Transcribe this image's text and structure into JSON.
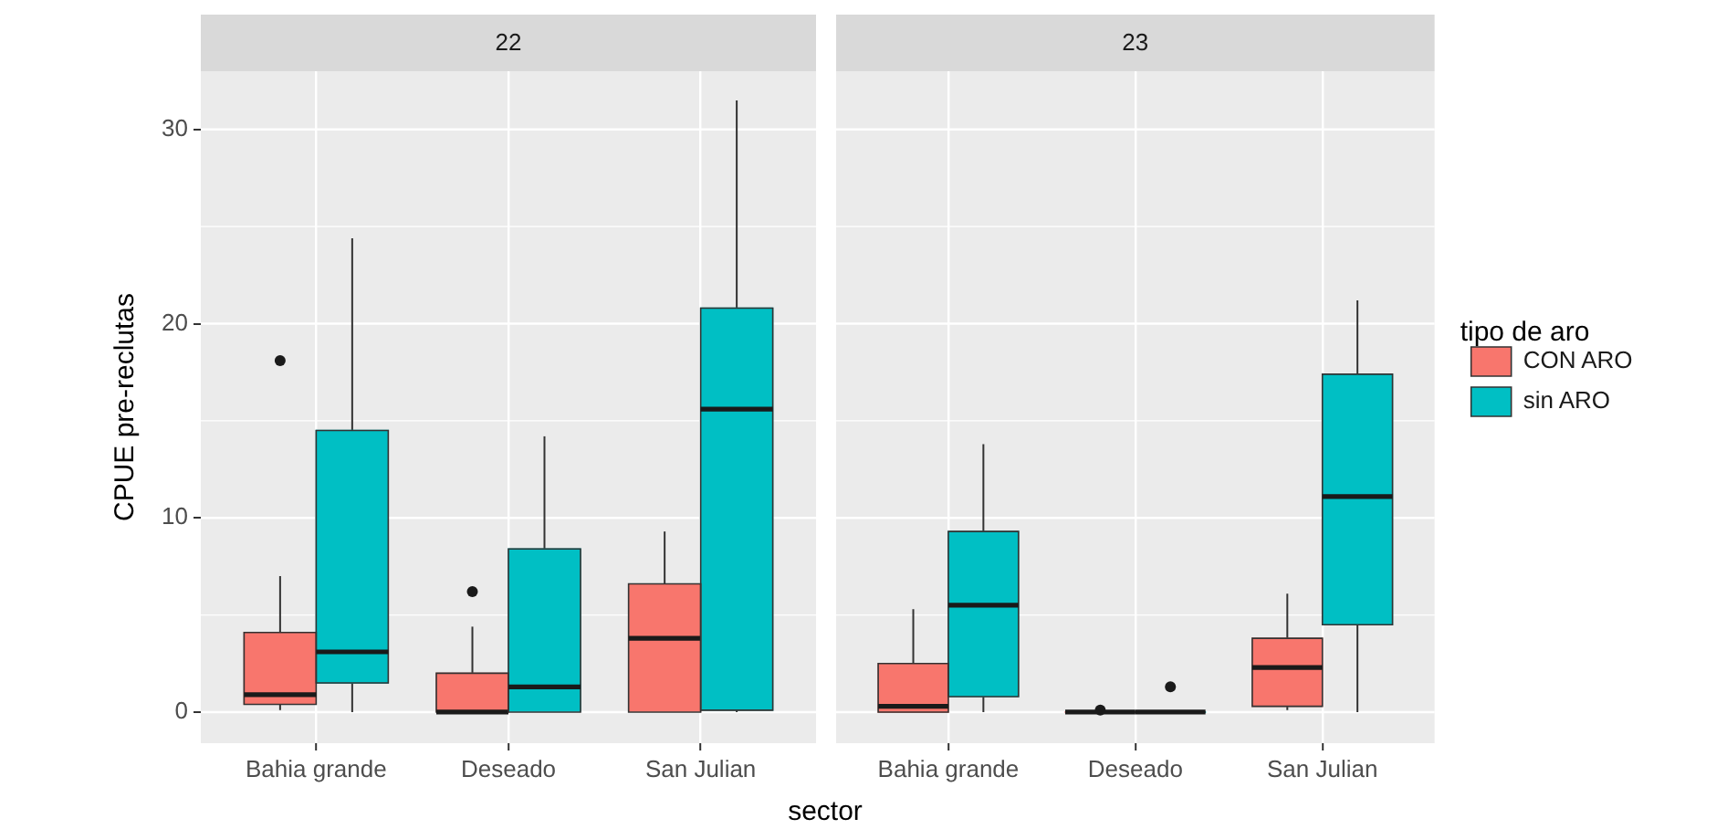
{
  "chart_data": [
    {
      "type": "box",
      "title": "22",
      "xlabel": "sector",
      "ylabel": "CPUE pre-reclutas",
      "categories": [
        "Bahia grande",
        "Deseado",
        "San Julian"
      ],
      "series": [
        {
          "color": "#f8766d",
          "boxes": [
            {
              "low": 0.1,
              "q1": 0.4,
              "median": 0.9,
              "q3": 4.1,
              "high": 7,
              "outliers": [
                18.1
              ]
            },
            {
              "low": 0,
              "q1": 0,
              "median": 0,
              "q3": 2,
              "high": 4.4,
              "outliers": [
                6.2
              ]
            },
            {
              "low": 0,
              "q1": 0,
              "median": 3.8,
              "q3": 6.6,
              "high": 9.3
            }
          ]
        },
        {
          "color": "#00bfc4",
          "boxes": [
            {
              "low": 0,
              "q1": 1.5,
              "median": 3.1,
              "q3": 14.5,
              "high": 24.4
            },
            {
              "low": 0,
              "q1": 0,
              "median": 1.3,
              "q3": 8.4,
              "high": 14.2
            },
            {
              "low": 0,
              "q1": 0.1,
              "median": 15.6,
              "q3": 20.8,
              "high": 31.5
            }
          ]
        }
      ],
      "ylim": [
        -1.6,
        33
      ],
      "yticks": [
        0,
        10,
        20,
        30
      ],
      "grid": true
    },
    {
      "type": "box",
      "title": "23",
      "categories": [
        "Bahia grande",
        "Deseado",
        "San Julian"
      ],
      "series": [
        {
          "name": "CON ARO",
          "color": "#f8766d",
          "boxes": [
            {
              "low": 0,
              "q1": 0,
              "median": 0.3,
              "q3": 2.5,
              "high": 5.3
            },
            {
              "low": 0,
              "q1": 0,
              "median": 0,
              "q3": 0,
              "high": 0,
              "outliers": [
                0.1
              ]
            },
            {
              "low": 0.1,
              "q1": 0.3,
              "median": 2.3,
              "q3": 3.8,
              "high": 6.1
            }
          ]
        },
        {
          "name": "sin ARO",
          "color": "#00bfc4",
          "boxes": [
            {
              "low": 0,
              "q1": 0.8,
              "median": 5.5,
              "q3": 9.3,
              "high": 13.8
            },
            {
              "low": 0,
              "q1": 0,
              "median": 0,
              "q3": 0,
              "high": 0,
              "outliers": [
                1.3
              ]
            },
            {
              "low": 0,
              "q1": 4.5,
              "median": 11.1,
              "q3": 17.4,
              "high": 21.2
            }
          ]
        }
      ],
      "ylim": [
        -1.6,
        33
      ],
      "yticks": [
        0,
        10,
        20,
        30
      ],
      "grid": true,
      "legend": "right",
      "legend_title": "tipo de aro",
      "tick_labels": "x"
    }
  ]
}
